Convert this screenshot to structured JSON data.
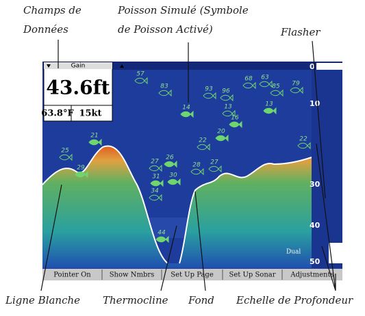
{
  "annotations": {
    "data_fields": [
      "Champs de",
      "Données"
    ],
    "simulated_fish": [
      "Poisson Simulé (Symbole",
      "de Poisson Activé)"
    ],
    "flasher": "Flasher",
    "white_line": "Ligne Blanche",
    "thermocline": "Thermocline",
    "bottom": "Fond",
    "depth_scale": "Echelle de Profondeur"
  },
  "screen": {
    "gain": "Gain",
    "depth": "43.6ft",
    "temperature": "63.8°F",
    "speed": "15kt",
    "dual": "Dual",
    "softkeys": [
      "Pointer On",
      "Show Nmbrs",
      "Set Up Page",
      "Set Up Sonar",
      "Adjustments"
    ],
    "depth_scale": [
      "0",
      "10",
      "30",
      "40",
      "50"
    ],
    "fish": [
      "57",
      "83",
      "93",
      "96",
      "68",
      "63",
      "85",
      "79",
      "14",
      "13",
      "13",
      "16",
      "20",
      "21",
      "22",
      "25",
      "22",
      "29",
      "27",
      "26",
      "28",
      "27",
      "31",
      "30",
      "34",
      "44"
    ]
  }
}
